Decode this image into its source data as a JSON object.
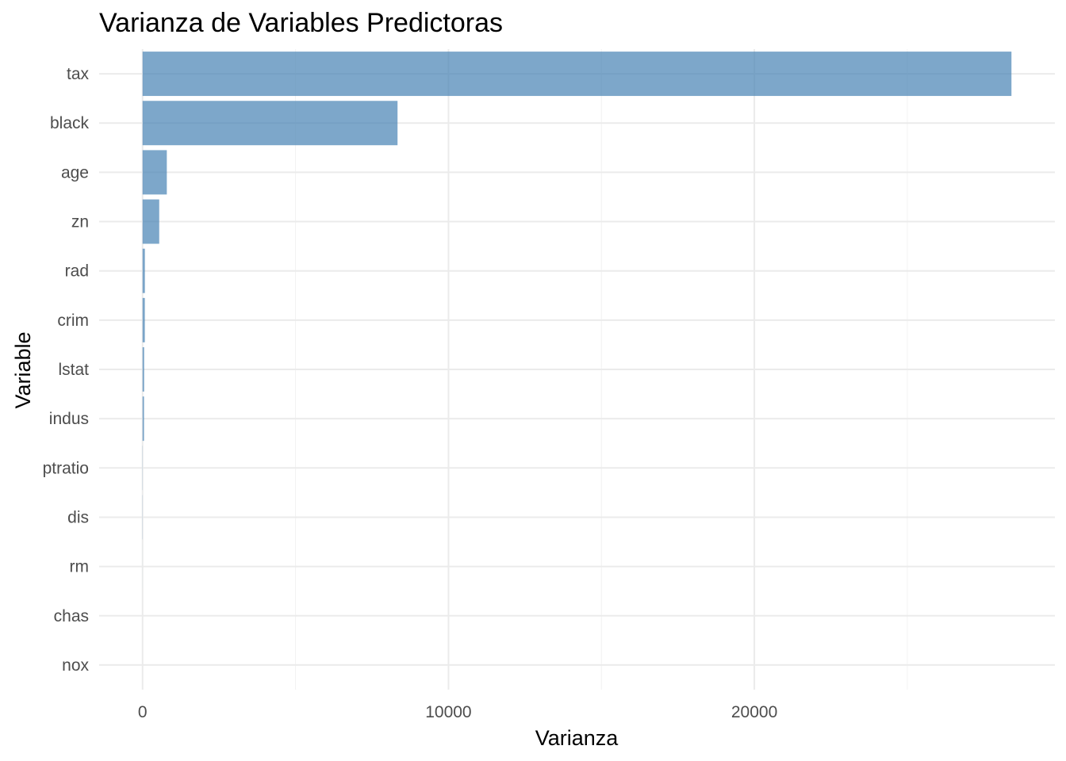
{
  "chart_data": {
    "type": "bar",
    "orientation": "horizontal",
    "title": "Varianza de Variables Predictoras",
    "xlabel": "Varianza",
    "ylabel": "Variable",
    "categories": [
      "tax",
      "black",
      "age",
      "zn",
      "rad",
      "crim",
      "lstat",
      "indus",
      "ptratio",
      "dis",
      "rm",
      "chas",
      "nox"
    ],
    "values": [
      28404.8,
      8334.8,
      792.4,
      543.9,
      75.8,
      73.99,
      50.99,
      47.06,
      4.69,
      4.43,
      0.49,
      0.06,
      0.013
    ],
    "xlim": [
      -1420,
      29825
    ],
    "xticks": [
      0,
      10000,
      20000
    ],
    "xtick_labels": [
      "0",
      "10000",
      "20000"
    ],
    "minor_xticks": [
      5000,
      15000,
      25000
    ],
    "grid": true,
    "bar_color": "#4682b4",
    "bar_opacity": 0.7,
    "legend": "none"
  }
}
